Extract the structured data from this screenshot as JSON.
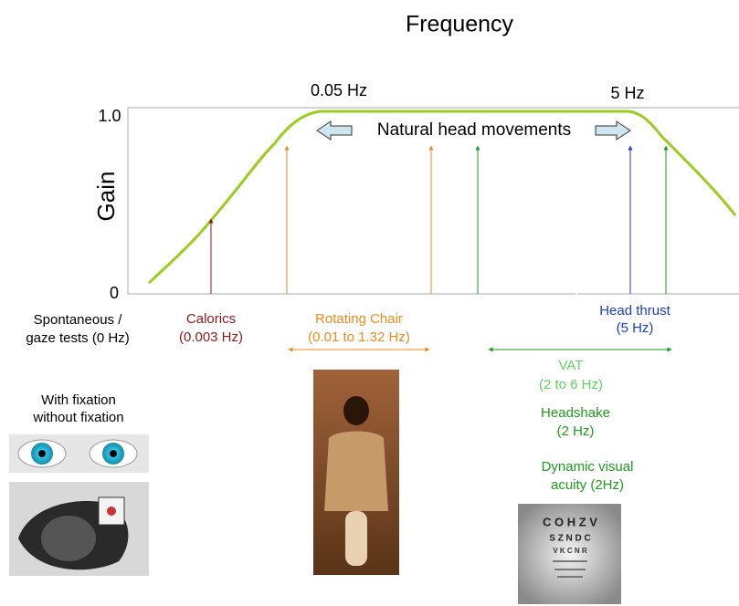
{
  "title": "Frequency",
  "y_axis": {
    "label": "Gain",
    "ticks": [
      "1.0",
      "0"
    ]
  },
  "markers": [
    "0.05 Hz",
    "5 Hz"
  ],
  "band": "Natural head movements",
  "tests": [
    {
      "lines": [
        "Spontaneous /",
        "gaze tests (0 Hz)"
      ]
    },
    {
      "lines": [
        "Calorics",
        "(0.003 Hz)"
      ]
    },
    {
      "lines": [
        "Rotating Chair",
        "(0.01 to 1.32 Hz)"
      ]
    },
    {
      "lines": [
        "Head thrust",
        "(5 Hz)"
      ]
    },
    {
      "lines": [
        "VAT",
        "(2 to 6 Hz)"
      ]
    },
    {
      "lines": [
        "Headshake",
        "(2 Hz)"
      ]
    },
    {
      "lines": [
        "Dynamic visual",
        "acuity (2Hz)"
      ]
    }
  ],
  "fixation": [
    "With fixation",
    "without fixation"
  ],
  "eye_chart": [
    "C O H Z V",
    "S Z N D C",
    "V K C N R"
  ]
}
